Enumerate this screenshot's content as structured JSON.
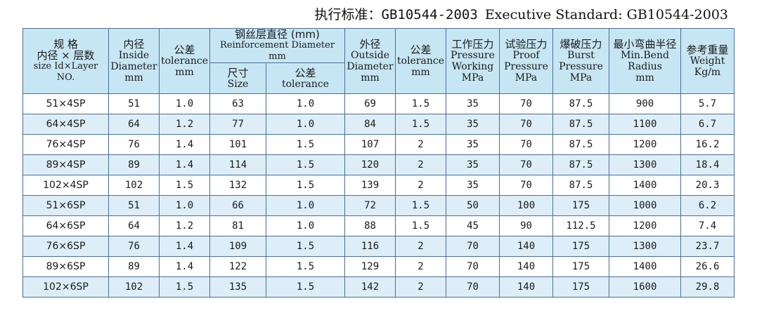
{
  "standard": {
    "label_cn": "执行标准：",
    "code_cn": "GB10544-2003",
    "label_en": "Executive Standard: GB10544-2003"
  },
  "header": {
    "size_cn_1": "规  格",
    "size_cn_2": "内径 × 层数",
    "size_en": "size Id×Layer NO.",
    "inside_cn": "内径",
    "inside_en_1": "Inside",
    "inside_en_2": "Diameter",
    "inside_en_3": "mm",
    "tol1_cn": "公差",
    "tol1_en_1": "tolerance",
    "tol1_en_2": "mm",
    "reinf_cn": "钢丝层直径 (mm)",
    "reinf_en": "Reinforcement Diameter mm",
    "reinf_size_cn": "尺寸",
    "reinf_size_en": "Size",
    "reinf_tol_cn": "公差",
    "reinf_tol_en": "tolerance",
    "outside_cn": "外径",
    "outside_en_1": "Outside",
    "outside_en_2": "Diameter",
    "outside_en_3": "mm",
    "tol2_cn": "公差",
    "tol2_en_1": "tolerance",
    "tol2_en_2": "mm",
    "work_cn": "工作压力",
    "work_en_1": "Pressure",
    "work_en_2": "Working",
    "work_en_3": "MPa",
    "proof_cn": "试验压力",
    "proof_en_1": "Proof",
    "proof_en_2": "Pressure",
    "proof_en_3": "MPa",
    "burst_cn": "爆破压力",
    "burst_en_1": "Burst",
    "burst_en_2": "Pressure",
    "burst_en_3": "MPa",
    "bend_cn": "最小弯曲半径",
    "bend_en_1": "Min.Bend",
    "bend_en_2": "Radius",
    "bend_en_3": "mm",
    "weight_cn": "参考重量",
    "weight_en_1": "Weight",
    "weight_en_2": "Kg/m"
  },
  "rows": [
    [
      "51×4SP",
      "51",
      "1.0",
      "63",
      "1.0",
      "69",
      "1.5",
      "35",
      "70",
      "87.5",
      "900",
      "5.7"
    ],
    [
      "64×4SP",
      "64",
      "1.2",
      "77",
      "1.0",
      "84",
      "1.5",
      "35",
      "70",
      "87.5",
      "1100",
      "6.7"
    ],
    [
      "76×4SP",
      "76",
      "1.4",
      "101",
      "1.5",
      "107",
      "2",
      "35",
      "70",
      "87.5",
      "1200",
      "16.2"
    ],
    [
      "89×4SP",
      "89",
      "1.4",
      "114",
      "1.5",
      "120",
      "2",
      "35",
      "70",
      "87.5",
      "1300",
      "18.4"
    ],
    [
      "102×4SP",
      "102",
      "1.5",
      "132",
      "1.5",
      "139",
      "2",
      "35",
      "70",
      "87.5",
      "1400",
      "20.3"
    ],
    [
      "51×6SP",
      "51",
      "1.0",
      "66",
      "1.0",
      "72",
      "1.5",
      "50",
      "100",
      "175",
      "1000",
      "6.2"
    ],
    [
      "64×6SP",
      "64",
      "1.2",
      "81",
      "1.0",
      "88",
      "1.5",
      "45",
      "90",
      "112.5",
      "1200",
      "7.4"
    ],
    [
      "76×6SP",
      "76",
      "1.4",
      "109",
      "1.5",
      "116",
      "2",
      "70",
      "140",
      "175",
      "1300",
      "23.7"
    ],
    [
      "89×6SP",
      "89",
      "1.4",
      "122",
      "1.5",
      "129",
      "2",
      "70",
      "140",
      "175",
      "1400",
      "26.6"
    ],
    [
      "102×6SP",
      "102",
      "1.5",
      "135",
      "1.5",
      "142",
      "2",
      "70",
      "140",
      "175",
      "1600",
      "29.8"
    ]
  ],
  "colors": {
    "header_bg": "#c7e6f3",
    "row_alt_bg": "#ddeef8",
    "border": "#4a6f95"
  }
}
